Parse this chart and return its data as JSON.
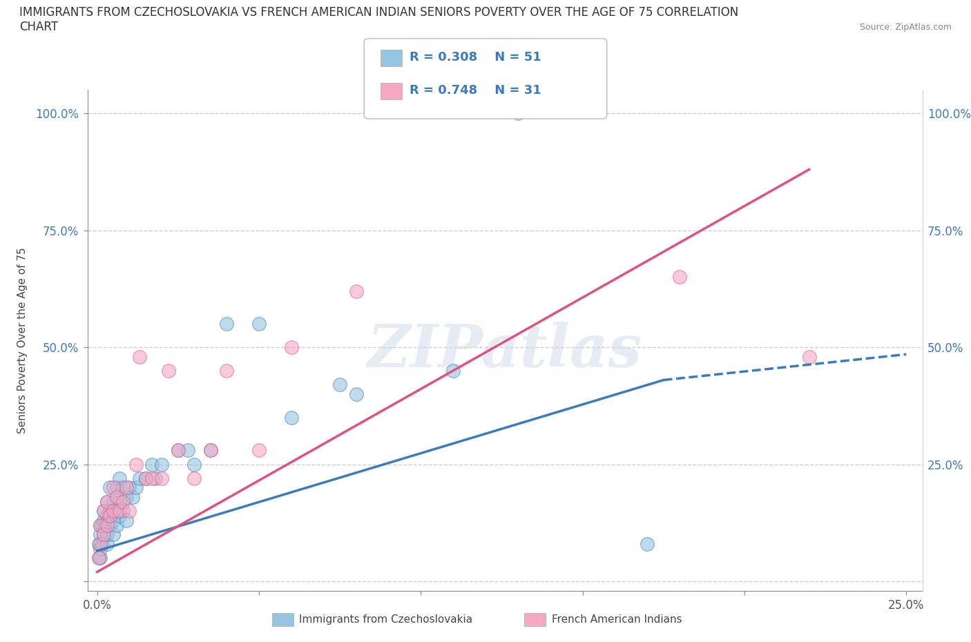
{
  "title": "IMMIGRANTS FROM CZECHOSLOVAKIA VS FRENCH AMERICAN INDIAN SENIORS POVERTY OVER THE AGE OF 75 CORRELATION\nCHART",
  "source_text": "Source: ZipAtlas.com",
  "ylabel": "Seniors Poverty Over the Age of 75",
  "xlabel_legend1": "Immigrants from Czechoslovakia",
  "xlabel_legend2": "French American Indians",
  "R1": 0.308,
  "N1": 51,
  "R2": 0.748,
  "N2": 31,
  "color1": "#94c4e0",
  "color2": "#f4a8c4",
  "trendline1_color": "#3a7abf",
  "trendline2_color": "#e05080",
  "watermark": "ZIPatlas",
  "xlim": [
    0.0,
    0.25
  ],
  "ylim": [
    0.0,
    1.0
  ],
  "xticks": [
    0.0,
    0.05,
    0.1,
    0.15,
    0.2,
    0.25
  ],
  "yticks": [
    0.0,
    0.25,
    0.5,
    0.75,
    1.0
  ],
  "xticklabels": [
    "0.0%",
    "",
    "",
    "",
    "",
    "25.0%"
  ],
  "yticklabels": [
    "",
    "25.0%",
    "50.0%",
    "75.0%",
    "100.0%"
  ],
  "blue_scatter_x": [
    0.0005,
    0.0005,
    0.001,
    0.001,
    0.001,
    0.001,
    0.0015,
    0.0015,
    0.002,
    0.002,
    0.002,
    0.0025,
    0.003,
    0.003,
    0.003,
    0.003,
    0.004,
    0.004,
    0.004,
    0.005,
    0.005,
    0.005,
    0.006,
    0.006,
    0.006,
    0.007,
    0.007,
    0.007,
    0.008,
    0.008,
    0.009,
    0.009,
    0.01,
    0.011,
    0.012,
    0.013,
    0.015,
    0.017,
    0.018,
    0.02,
    0.025,
    0.028,
    0.03,
    0.035,
    0.04,
    0.05,
    0.06,
    0.075,
    0.08,
    0.11,
    0.17
  ],
  "blue_scatter_y": [
    0.05,
    0.08,
    0.05,
    0.07,
    0.1,
    0.12,
    0.08,
    0.12,
    0.1,
    0.13,
    0.15,
    0.12,
    0.08,
    0.1,
    0.14,
    0.17,
    0.12,
    0.15,
    0.2,
    0.1,
    0.13,
    0.17,
    0.12,
    0.15,
    0.2,
    0.14,
    0.17,
    0.22,
    0.15,
    0.2,
    0.13,
    0.18,
    0.2,
    0.18,
    0.2,
    0.22,
    0.22,
    0.25,
    0.22,
    0.25,
    0.28,
    0.28,
    0.25,
    0.28,
    0.55,
    0.55,
    0.35,
    0.42,
    0.4,
    0.45,
    0.08
  ],
  "pink_scatter_x": [
    0.0005,
    0.001,
    0.001,
    0.002,
    0.002,
    0.003,
    0.003,
    0.004,
    0.005,
    0.005,
    0.006,
    0.007,
    0.008,
    0.009,
    0.01,
    0.012,
    0.013,
    0.015,
    0.017,
    0.02,
    0.022,
    0.025,
    0.03,
    0.035,
    0.04,
    0.05,
    0.06,
    0.08,
    0.13,
    0.18,
    0.22
  ],
  "pink_scatter_y": [
    0.05,
    0.08,
    0.12,
    0.1,
    0.15,
    0.12,
    0.17,
    0.14,
    0.15,
    0.2,
    0.18,
    0.15,
    0.17,
    0.2,
    0.15,
    0.25,
    0.48,
    0.22,
    0.22,
    0.22,
    0.45,
    0.28,
    0.22,
    0.28,
    0.45,
    0.28,
    0.5,
    0.62,
    1.0,
    0.65,
    0.48
  ],
  "blue_trend_x0": 0.0,
  "blue_trend_x1_solid": 0.175,
  "blue_trend_x1_dashed": 0.25,
  "blue_trend_y0": 0.065,
  "blue_trend_y1_solid": 0.43,
  "blue_trend_y1_dashed": 0.485,
  "pink_trend_x0": 0.0,
  "pink_trend_x1": 0.22,
  "pink_trend_y0": 0.02,
  "pink_trend_y1": 0.88
}
